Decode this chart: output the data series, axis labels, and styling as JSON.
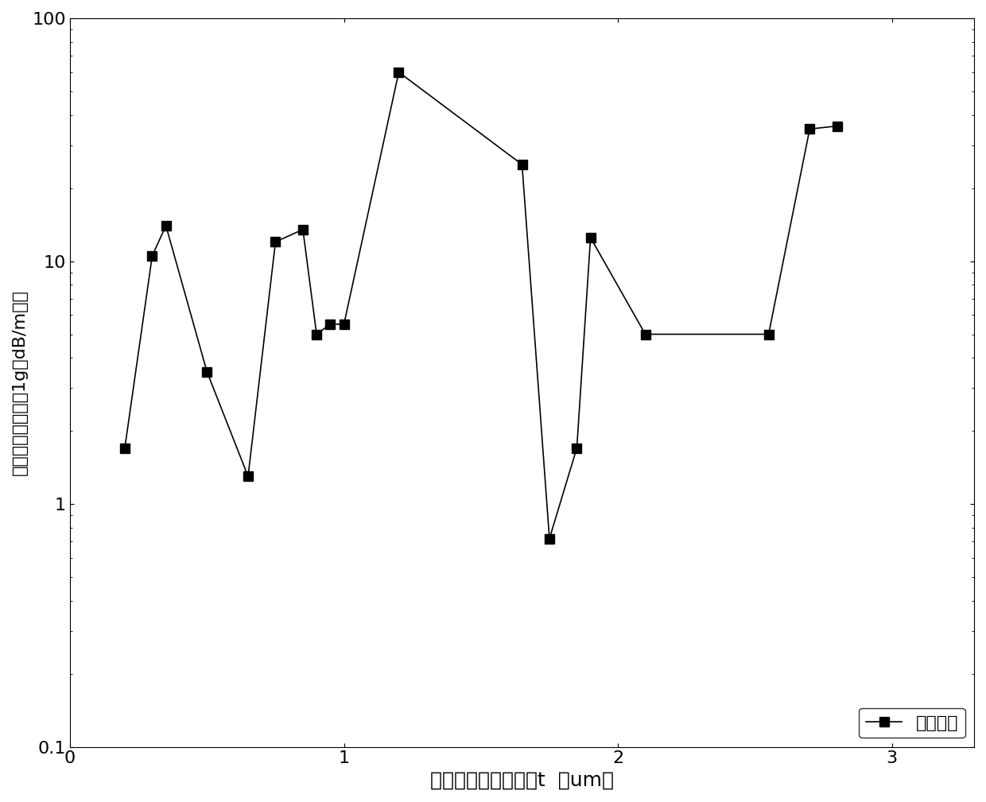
{
  "x": [
    0.2,
    0.3,
    0.35,
    0.5,
    0.65,
    0.75,
    0.85,
    0.9,
    0.95,
    1.0,
    1.2,
    1.65,
    1.75,
    1.85,
    1.9,
    2.1,
    2.55,
    2.7,
    2.8
  ],
  "y": [
    1.7,
    10.5,
    14.0,
    3.5,
    1.3,
    12.0,
    13.5,
    5.0,
    5.5,
    5.5,
    60.0,
    25.0,
    0.72,
    1.7,
    12.5,
    5.0,
    5.0,
    35.0,
    36.0
  ],
  "xlim": [
    0,
    3.3
  ],
  "ylim": [
    0.1,
    100
  ],
  "xlabel": "纤芯反谐振单环壁厚t  （um）",
  "ylabel": "限制损耗的对数（1g（dB/m））",
  "legend_label": "限制损耗",
  "line_color": "#000000",
  "marker": "s",
  "marker_color": "#000000",
  "marker_size": 9,
  "line_width": 1.2,
  "xticks": [
    0,
    1,
    2,
    3
  ],
  "yticks": [
    0.1,
    1,
    10,
    100
  ],
  "background_color": "#ffffff",
  "xlabel_fontsize": 18,
  "ylabel_fontsize": 16,
  "tick_fontsize": 16,
  "legend_fontsize": 16
}
